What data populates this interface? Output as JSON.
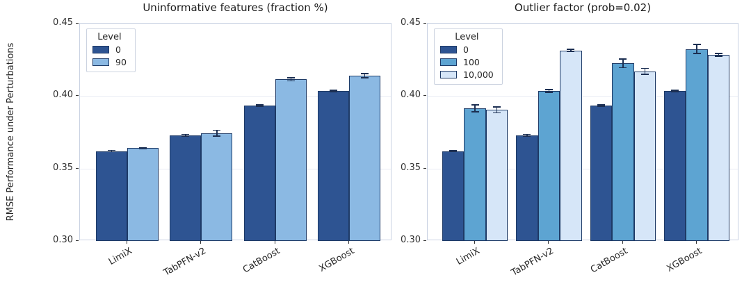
{
  "ylabel": "RMSE Performance under Perturbations",
  "colors": {
    "level_0": "#2e5492",
    "level_90": "#8bb9e3",
    "level_100": "#5da4d2",
    "level_10000": "#d6e6f8",
    "bar_edge": "#1e3a66",
    "error_bar": "#1c2f52",
    "gridline": "#e8ecf3",
    "spine": "#c9d2e2"
  },
  "chart_data": [
    {
      "type": "bar",
      "title": "Uninformative features (fraction %)",
      "categories": [
        "LimiX",
        "TabPFN-v2",
        "CatBoost",
        "XGBoost"
      ],
      "legend_title": "Level",
      "legend_position": "upper left",
      "ylim": [
        0.3,
        0.45
      ],
      "yticks": [
        0.3,
        0.35,
        0.4,
        0.45
      ],
      "grid": true,
      "series": [
        {
          "name": "0",
          "color": "#2e5492",
          "values": [
            0.362,
            0.373,
            0.3935,
            0.4035
          ],
          "errors": [
            0.0005,
            0.0005,
            0.0005,
            0.0005
          ]
        },
        {
          "name": "90",
          "color": "#8bb9e3",
          "values": [
            0.364,
            0.3745,
            0.4115,
            0.414
          ],
          "errors": [
            0.0005,
            0.002,
            0.001,
            0.0015
          ]
        }
      ]
    },
    {
      "type": "bar",
      "title": "Outlier factor (prob=0.02)",
      "categories": [
        "LimiX",
        "TabPFN-v2",
        "CatBoost",
        "XGBoost"
      ],
      "legend_title": "Level",
      "legend_position": "upper left",
      "ylim": [
        0.3,
        0.45
      ],
      "yticks": [
        0.3,
        0.35,
        0.4,
        0.45
      ],
      "grid": true,
      "series": [
        {
          "name": "0",
          "color": "#2e5492",
          "values": [
            0.362,
            0.373,
            0.3935,
            0.4035
          ],
          "errors": [
            0.0003,
            0.0005,
            0.0005,
            0.0005
          ]
        },
        {
          "name": "100",
          "color": "#5da4d2",
          "values": [
            0.3915,
            0.4035,
            0.4225,
            0.4325
          ],
          "errors": [
            0.0025,
            0.001,
            0.003,
            0.003
          ]
        },
        {
          "name": "10,000",
          "color": "#d6e6f8",
          "values": [
            0.3905,
            0.4315,
            0.417,
            0.4285
          ],
          "errors": [
            0.002,
            0.0007,
            0.002,
            0.001
          ]
        }
      ]
    }
  ]
}
